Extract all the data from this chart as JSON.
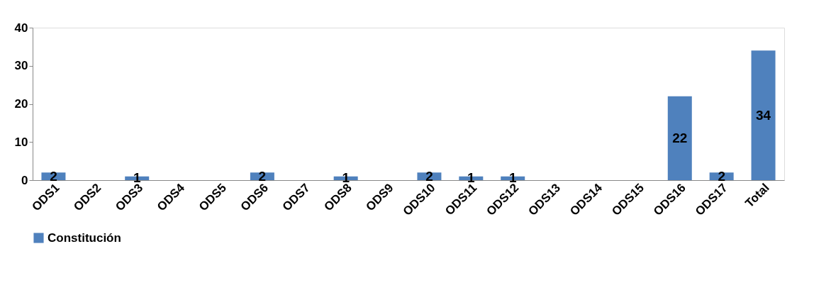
{
  "chart_data": {
    "type": "bar",
    "categories": [
      "ODS1",
      "ODS2",
      "ODS3",
      "ODS4",
      "ODS5",
      "ODS6",
      "ODS7",
      "ODS8",
      "ODS9",
      "ODS10",
      "ODS11",
      "ODS12",
      "ODS13",
      "ODS14",
      "ODS15",
      "ODS16",
      "ODS17",
      "Total"
    ],
    "series": [
      {
        "name": "Constitución",
        "color": "#4f81bd",
        "values": [
          2,
          0,
          1,
          0,
          0,
          2,
          0,
          1,
          0,
          2,
          1,
          1,
          0,
          0,
          0,
          22,
          2,
          34
        ],
        "value_labels": [
          "2",
          null,
          "1",
          null,
          null,
          "2",
          null,
          "1",
          null,
          "2",
          "1",
          "1",
          null,
          null,
          null,
          "22",
          "2",
          "34"
        ]
      }
    ],
    "ylim": [
      0,
      40
    ],
    "yticks": [
      0,
      10,
      20,
      30,
      40
    ],
    "grid": false,
    "legend": "bottom"
  }
}
